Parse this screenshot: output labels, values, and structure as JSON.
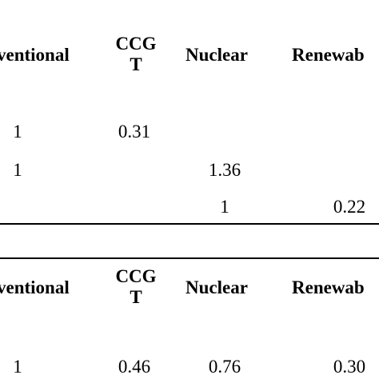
{
  "table1": {
    "headers": [
      "ventional",
      "CCG",
      "T",
      "Nuclear",
      "Renewab"
    ],
    "rows": [
      [
        "1",
        "0.31",
        "",
        ""
      ],
      [
        "1",
        "",
        "1.36",
        ""
      ],
      [
        "",
        "",
        "1",
        "0.22"
      ]
    ]
  },
  "table2": {
    "headers": [
      "ventional",
      "CCG",
      "T",
      "Nuclear",
      "Renewab"
    ],
    "rows": [
      [
        "1",
        "0.46",
        "0.76",
        "0.30"
      ]
    ]
  }
}
